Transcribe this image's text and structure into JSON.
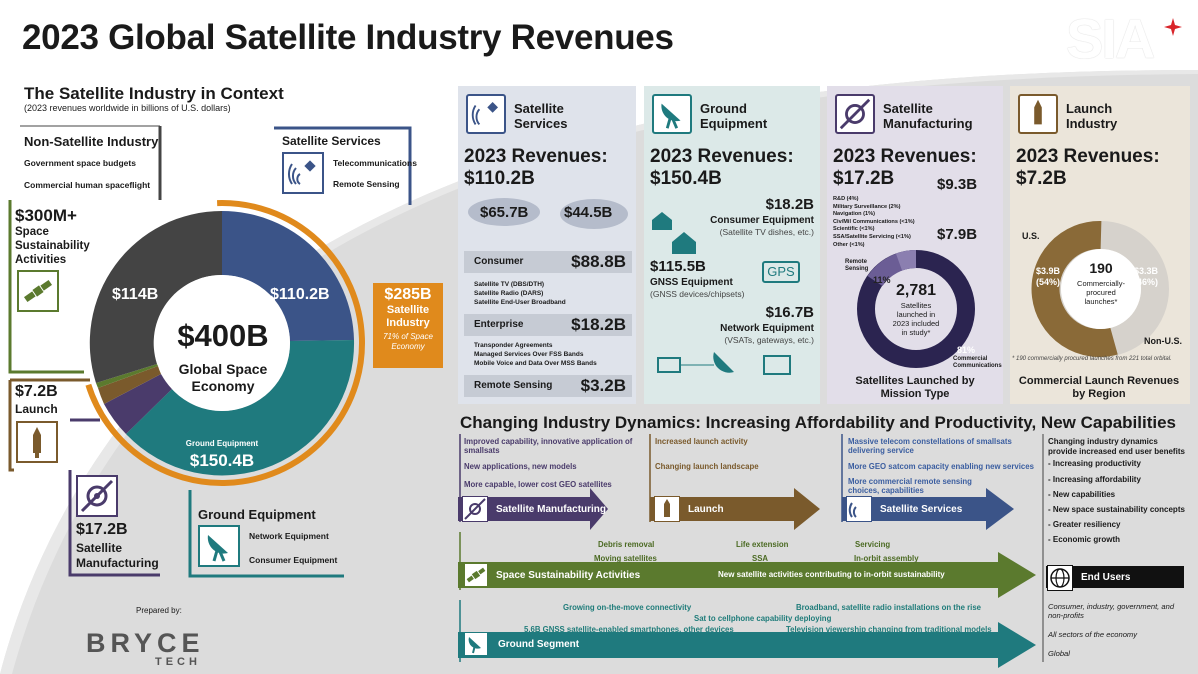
{
  "title": "2023 Global Satellite Industry Revenues",
  "context": {
    "title": "The Satellite Industry in Context",
    "subtitle": "(2023 revenues worldwide in billions of U.S. dollars)",
    "non_satellite": {
      "title": "Non-Satellite Industry",
      "items": [
        "Government space budgets",
        "Commercial human spaceflight"
      ]
    },
    "satellite_services": {
      "title": "Satellite Services",
      "items": [
        "Telecommunications",
        "Remote Sensing"
      ]
    },
    "sustainability": {
      "value": "$300M+",
      "label": "Space Sustainability Activities"
    },
    "launch": {
      "value": "$7.2B",
      "label": "Launch"
    },
    "manufacturing": {
      "value": "$17.2B",
      "label": "Satellite Manufacturing"
    },
    "ground_equipment": {
      "title": "Ground Equipment",
      "items": [
        "Network Equipment",
        "Consumer Equipment"
      ]
    },
    "donut": {
      "center_value": "$400B",
      "center_label": "Global Space Economy",
      "seg_114": "$114B",
      "seg_110": "$110.2B",
      "seg_ground_label": "Ground Equipment",
      "seg_ground_value": "$150.4B"
    },
    "satellite_industry": {
      "value": "$285B",
      "label": "Satellite Industry",
      "note": "71% of Space Economy"
    },
    "prepared_by": "Prepared by:",
    "bryce": "BRYCE",
    "bryce_sub": "TECH"
  },
  "sia_logo": "SIA",
  "columns": {
    "services": {
      "title": "Satellite Services",
      "rev_label": "2023 Revenues:",
      "rev_value": "$110.2B",
      "us": "$65.7B",
      "nonus": "$44.5B",
      "consumer_label": "Consumer",
      "consumer_value": "$88.8B",
      "consumer_items": [
        "Satellite TV (DBS/DTH)",
        "Satellite Radio (DARS)",
        "Satellite End-User Broadband"
      ],
      "enterprise_label": "Enterprise",
      "enterprise_value": "$18.2B",
      "enterprise_items": [
        "Transponder Agreements",
        "Managed Services Over FSS Bands",
        "Mobile Voice and Data Over MSS Bands"
      ],
      "rs_label": "Remote Sensing",
      "rs_value": "$3.2B"
    },
    "ground": {
      "title": "Ground Equipment",
      "rev_label": "2023 Revenues:",
      "rev_value": "$150.4B",
      "consumer_value": "$18.2B",
      "consumer_label": "Consumer Equipment",
      "consumer_note": "(Satellite TV dishes, etc.)",
      "gnss_value": "$115.5B",
      "gnss_label": "GNSS Equipment",
      "gnss_note": "(GNSS devices/chipsets)",
      "gps": "GPS",
      "network_value": "$16.7B",
      "network_label": "Network Equipment",
      "network_note": "(VSATs, gateways, etc.)"
    },
    "manufacturing": {
      "title": "Satellite Manufacturing",
      "rev_label": "2023 Revenues:",
      "rev_value": "$17.2B",
      "us": "$9.3B",
      "nonus": "$7.9B",
      "breakdown": [
        "R&D (4%)",
        "Military Surveillance (2%)",
        "Navigation (1%)",
        "Civ/Mil Communications (<1%)",
        "Scientific (<1%)",
        "SSA/Satellite Servicing (<1%)",
        "Other (<1%)"
      ],
      "remote_sensing": "Remote Sensing",
      "pct_rs": "11%",
      "pct_comm": "81%",
      "commercial": "Commercial Communications",
      "center_value": "2,781",
      "center_text": "Satellites launched in 2023 included in study*",
      "chart_title": "Satellites Launched by Mission Type"
    },
    "launch": {
      "title": "Launch Industry",
      "rev_label": "2023 Revenues:",
      "rev_value": "$7.2B",
      "us_label": "U.S.",
      "nonus_label": "Non-U.S.",
      "us_value": "$3.9B",
      "us_pct": "(54%)",
      "nonus_value": "$3.3B",
      "nonus_pct": "(46%)",
      "center_value": "190",
      "center_text": "Commercially-procured launches*",
      "footnote": "* 190 commercially procured launches from 221 total orbital.",
      "chart_title": "Commercial Launch Revenues by Region"
    }
  },
  "dynamics": {
    "title": "Changing Industry Dynamics: Increasing Affordability and Productivity, New Capabilities",
    "mfg_items": [
      "Improved capability, innovative application of smallsats",
      "New applications, new models",
      "More capable, lower cost GEO satellites"
    ],
    "mfg_label": "Satellite Manufacturing",
    "launch_items": [
      "Increased launch activity",
      "Changing launch landscape"
    ],
    "launch_label": "Launch",
    "svc_items": [
      "Massive telecom constellations of smallsats delivering service",
      "More GEO satcom capacity enabling new services",
      "More commercial remote sensing choices, capabilities"
    ],
    "svc_label": "Satellite Services",
    "benefits_title": "Changing industry dynamics provide increased end user benefits",
    "benefits": [
      "- Increasing productivity",
      "- Increasing affordability",
      "- New capabilities",
      "- New space sustainability concepts",
      "- Greater resiliency",
      "- Economic growth"
    ],
    "sust_items": [
      "Debris removal",
      "Life extension",
      "Servicing",
      "Moving satellites",
      "SSA",
      "In-orbit assembly"
    ],
    "sust_label": "Space Sustainability Activities",
    "sust_note": "New satellite activities contributing to in-orbit sustainability",
    "end_users": "End Users",
    "end_items": [
      "Consumer, industry, government, and non-profits",
      "All sectors of the economy",
      "Global"
    ],
    "ground_items": [
      "Growing on-the-move connectivity",
      "Broadband, satellite radio installations on the rise",
      "Sat to cellphone capability deploying",
      "5.6B GNSS satellite-enabled smartphones, other devices",
      "Television viewership changing from traditional models"
    ],
    "ground_label": "Ground Segment"
  },
  "colors": {
    "services": "#3b5488",
    "ground": "#1f7a7e",
    "manufacturing": "#4a3b6b",
    "launch": "#7a5a2c",
    "orange": "#e08a1c",
    "nonsat": "#444444",
    "green": "#5b7a2e"
  }
}
